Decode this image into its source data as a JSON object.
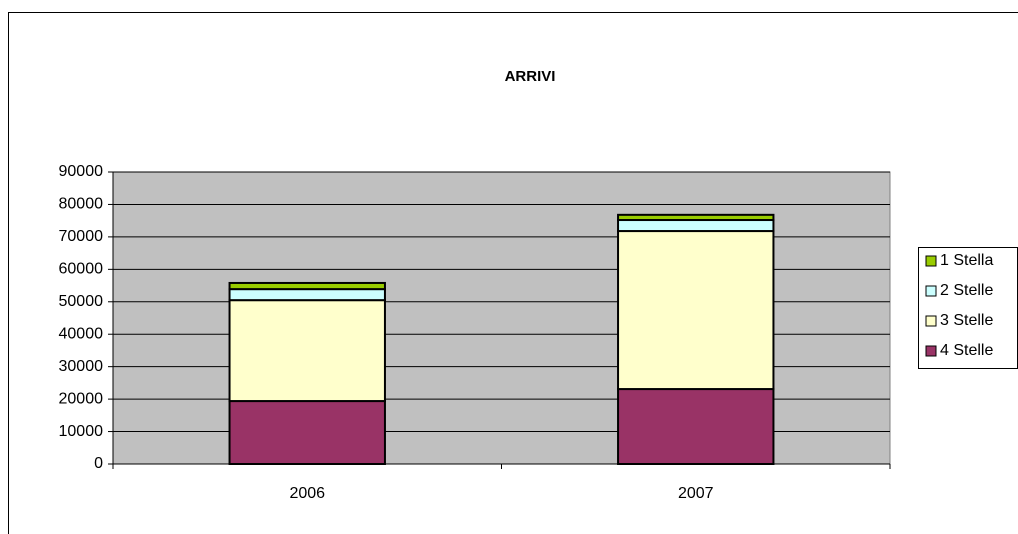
{
  "chart_data": {
    "type": "stacked_bar",
    "title": "ARRIVI",
    "categories": [
      "2006",
      "2007"
    ],
    "series": [
      {
        "name": "4 Stelle",
        "color": "#993366",
        "values": [
          19400,
          23100
        ]
      },
      {
        "name": "3 Stelle",
        "color": "#ffffcc",
        "values": [
          31100,
          48700
        ]
      },
      {
        "name": "2 Stelle",
        "color": "#ccffff",
        "values": [
          3400,
          3400
        ]
      },
      {
        "name": "1 Stella",
        "color": "#99cc00",
        "values": [
          1900,
          1600
        ]
      }
    ],
    "ylim": [
      0,
      90000
    ],
    "yticks": [
      0,
      10000,
      20000,
      30000,
      40000,
      50000,
      60000,
      70000,
      80000,
      90000
    ],
    "grid": true,
    "legend": "right"
  }
}
